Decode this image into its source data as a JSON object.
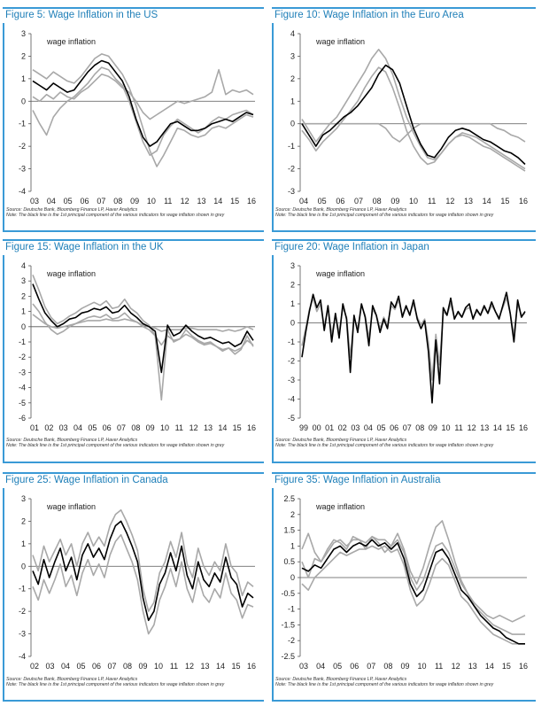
{
  "colors": {
    "accent": "#1f7fb8",
    "frame": "#3a9ad6",
    "principal": "#000000",
    "indicators": "#a8a8a8"
  },
  "chart_data": [
    {
      "type": "line",
      "title": "Figure 5: Wage Inflation in the US",
      "series_label": "wage inflation",
      "ylim": [
        -4,
        3
      ],
      "yticks": [
        "3",
        "2",
        "1",
        "0",
        "-1",
        "-2",
        "-3",
        "-4"
      ],
      "xticks": [
        "03",
        "04",
        "05",
        "06",
        "07",
        "08",
        "09",
        "10",
        "11",
        "12",
        "13",
        "14",
        "15",
        "16"
      ],
      "source": "Source: Deutsche Bank, Bloomberg Finance LP, Haver Analytics",
      "note": "Note: The black line is the 1st principal component of the various indicators for wage inflation shown in grey",
      "principal": [
        0.9,
        0.7,
        0.5,
        0.8,
        0.6,
        0.4,
        0.5,
        0.9,
        1.3,
        1.6,
        1.8,
        1.7,
        1.3,
        0.9,
        0.2,
        -0.8,
        -1.6,
        -2.0,
        -1.8,
        -1.4,
        -1.0,
        -0.9,
        -1.1,
        -1.3,
        -1.3,
        -1.2,
        -1.0,
        -0.9,
        -0.8,
        -0.9,
        -0.7,
        -0.5,
        -0.6
      ],
      "indicators": [
        [
          1.4,
          1.2,
          1.0,
          1.3,
          1.1,
          0.9,
          0.8,
          1.1,
          1.5,
          1.9,
          2.1,
          2.0,
          1.6,
          1.2,
          0.6,
          -0.2,
          -1.2,
          -2.2,
          -2.9,
          -2.4,
          -1.8,
          -1.2,
          -1.3,
          -1.5,
          -1.6,
          -1.5,
          -1.2,
          -1.1,
          -1.2,
          -1.0,
          -0.8,
          -0.6,
          -0.7
        ],
        [
          0.2,
          0.0,
          0.3,
          0.1,
          0.4,
          0.2,
          0.1,
          0.4,
          0.6,
          0.9,
          1.2,
          1.1,
          0.9,
          0.6,
          0.4,
          0.0,
          -0.5,
          -0.8,
          -0.6,
          -0.4,
          -0.2,
          0.0,
          -0.1,
          0.0,
          0.1,
          0.2,
          0.4,
          1.4,
          0.3,
          0.5,
          0.4,
          0.5,
          0.3
        ],
        [
          -0.4,
          -1.0,
          -1.5,
          -0.7,
          -0.3,
          0.0,
          0.2,
          0.5,
          0.8,
          1.2,
          1.5,
          1.4,
          1.0,
          0.7,
          0.0,
          -0.9,
          -1.8,
          -2.4,
          -2.2,
          -1.5,
          -1.1,
          -0.8,
          -1.0,
          -1.2,
          -1.4,
          -1.2,
          -0.9,
          -0.7,
          -0.8,
          -0.6,
          -0.5,
          -0.4,
          -0.6
        ]
      ]
    },
    {
      "type": "line",
      "title": "Figure 10: Wage Inflation in the Euro Area",
      "series_label": "wage inflation",
      "ylim": [
        -3,
        4
      ],
      "yticks": [
        "4",
        "3",
        "2",
        "1",
        "0",
        "-1",
        "-2",
        "-3"
      ],
      "xticks": [
        "04",
        "05",
        "06",
        "07",
        "08",
        "09",
        "10",
        "11",
        "12",
        "13",
        "14",
        "15",
        "16"
      ],
      "source": "Source: Deutsche Bank, Bloomberg Finance LP, Haver Analytics",
      "note": "Note: The black line is the 1st principal component of the various indicators for wage inflation shown in grey",
      "principal": [
        0.0,
        -0.5,
        -1.0,
        -0.5,
        -0.3,
        0.0,
        0.3,
        0.5,
        0.8,
        1.2,
        1.6,
        2.2,
        2.6,
        2.4,
        1.8,
        0.8,
        -0.2,
        -0.9,
        -1.4,
        -1.5,
        -1.1,
        -0.6,
        -0.3,
        -0.2,
        -0.3,
        -0.5,
        -0.7,
        -0.8,
        -1.0,
        -1.2,
        -1.3,
        -1.5,
        -1.8
      ],
      "indicators": [
        [
          0.2,
          -0.3,
          -0.8,
          -0.4,
          0.0,
          0.3,
          0.8,
          1.3,
          1.8,
          2.3,
          2.9,
          3.3,
          2.9,
          2.2,
          1.2,
          0.3,
          -0.4,
          -1.0,
          -1.5,
          -1.6,
          -1.3,
          -0.9,
          -0.6,
          -0.5,
          -0.6,
          -0.8,
          -1.0,
          -1.1,
          -1.3,
          -1.5,
          -1.7,
          -1.9,
          -2.1
        ],
        [
          -0.3,
          -0.7,
          -1.2,
          -0.8,
          -0.5,
          -0.2,
          0.2,
          0.6,
          1.0,
          1.6,
          2.1,
          2.5,
          2.3,
          1.6,
          0.7,
          -0.3,
          -1.0,
          -1.5,
          -1.8,
          -1.7,
          -1.3,
          -0.9,
          -0.6,
          -0.4,
          -0.5,
          -0.6,
          -0.8,
          -1.0,
          -1.2,
          -1.4,
          -1.6,
          -1.8,
          -2.0
        ],
        [
          0.0,
          0.0,
          0.0,
          0.0,
          0.0,
          0.0,
          0.0,
          0.0,
          0.0,
          0.0,
          0.0,
          0.0,
          -0.2,
          -0.6,
          -0.8,
          -0.5,
          -0.2,
          0.0,
          0.0,
          0.0,
          0.0,
          0.0,
          0.0,
          0.0,
          0.0,
          0.0,
          0.0,
          0.0,
          -0.2,
          -0.3,
          -0.5,
          -0.6,
          -0.8
        ]
      ]
    },
    {
      "type": "line",
      "title": "Figure 15: Wage Inflation in the UK",
      "series_label": "wage inflation",
      "ylim": [
        -6,
        4
      ],
      "yticks": [
        "4",
        "3",
        "2",
        "1",
        "0",
        "-1",
        "-2",
        "-3",
        "-4",
        "-5",
        "-6"
      ],
      "xticks": [
        "01",
        "02",
        "03",
        "04",
        "05",
        "06",
        "07",
        "08",
        "09",
        "10",
        "11",
        "12",
        "13",
        "14",
        "15",
        "16"
      ],
      "source": "Source: Deutsche Bank, Bloomberg Finance LP, Haver Analytics",
      "note": "Note: The black line is the 1st principal component of the various indicators for wage inflation shown in grey",
      "principal": [
        2.8,
        1.8,
        0.9,
        0.4,
        0.0,
        0.2,
        0.5,
        0.6,
        0.9,
        1.0,
        1.2,
        1.1,
        1.3,
        0.9,
        1.0,
        1.4,
        0.9,
        0.6,
        0.2,
        0.0,
        -0.3,
        -3.0,
        0.1,
        -0.6,
        -0.4,
        0.1,
        -0.3,
        -0.6,
        -0.8,
        -0.7,
        -0.9,
        -1.1,
        -1.0,
        -1.3,
        -1.1,
        -0.3,
        -0.9
      ],
      "indicators": [
        [
          3.4,
          2.4,
          1.3,
          0.6,
          0.2,
          0.4,
          0.7,
          0.9,
          1.2,
          1.4,
          1.6,
          1.4,
          1.7,
          1.2,
          1.3,
          1.8,
          1.2,
          0.9,
          0.4,
          0.1,
          -0.6,
          -4.8,
          -0.2,
          -1.0,
          -0.8,
          -0.2,
          -0.6,
          -0.9,
          -1.1,
          -1.0,
          -1.3,
          -1.6,
          -1.4,
          -1.8,
          -1.5,
          -0.6,
          -1.3
        ],
        [
          1.5,
          1.0,
          0.3,
          -0.2,
          -0.5,
          -0.3,
          0.0,
          0.2,
          0.4,
          0.6,
          0.7,
          0.6,
          0.8,
          0.5,
          0.6,
          0.9,
          0.5,
          0.3,
          0.0,
          -0.2,
          -0.6,
          -1.2,
          -0.6,
          -0.9,
          -0.8,
          -0.5,
          -0.7,
          -1.0,
          -1.2,
          -1.1,
          -1.3,
          -1.5,
          -1.4,
          -1.6,
          -1.4,
          -0.9,
          -1.2
        ],
        [
          0.8,
          0.5,
          0.2,
          0.0,
          -0.1,
          0.0,
          0.1,
          0.2,
          0.3,
          0.4,
          0.4,
          0.4,
          0.5,
          0.4,
          0.4,
          0.5,
          0.4,
          0.3,
          0.1,
          0.0,
          -0.1,
          -0.3,
          -0.2,
          -0.2,
          -0.2,
          -0.1,
          -0.1,
          -0.2,
          -0.2,
          -0.2,
          -0.2,
          -0.3,
          -0.2,
          -0.3,
          -0.2,
          0.0,
          -0.2
        ]
      ]
    },
    {
      "type": "line",
      "title": "Figure 20: Wage Inflation in Japan",
      "series_label": "wage inflation",
      "ylim": [
        -5,
        3
      ],
      "yticks": [
        "3",
        "2",
        "1",
        "0",
        "-1",
        "-2",
        "-3",
        "-4",
        "-5"
      ],
      "xticks": [
        "99",
        "00",
        "01",
        "02",
        "03",
        "04",
        "05",
        "06",
        "07",
        "08",
        "09",
        "10",
        "11",
        "12",
        "13",
        "14",
        "15",
        "16"
      ],
      "source": "Source: Deutsche Bank, Bloomberg Finance LP, Haver Analytics",
      "note": "Note: The black line is the 1st principal component of the various indicators for wage inflation shown in grey",
      "principal": [
        -1.8,
        -0.5,
        0.6,
        1.5,
        0.8,
        1.2,
        -0.4,
        0.9,
        -1.0,
        0.5,
        -0.8,
        1.0,
        0.2,
        -2.6,
        0.4,
        -0.5,
        1.0,
        0.3,
        -1.2,
        0.9,
        0.4,
        -0.5,
        0.2,
        -0.3,
        1.1,
        0.8,
        1.4,
        0.3,
        0.9,
        0.4,
        1.2,
        0.2,
        -0.3,
        0.1,
        -1.5,
        -4.2,
        -0.9,
        -3.2,
        0.8,
        0.4,
        1.3,
        0.2,
        0.6,
        0.3,
        0.8,
        1.0,
        0.2,
        0.7,
        0.4,
        0.9,
        0.5,
        1.1,
        0.6,
        0.2,
        0.9,
        1.6,
        0.5,
        -1.0,
        1.2,
        0.3,
        0.6
      ],
      "indicators": [
        [
          -1.2,
          -0.3,
          0.7,
          1.3,
          0.6,
          1.0,
          -0.2,
          0.8,
          -0.6,
          0.4,
          -0.5,
          0.8,
          0.3,
          -1.8,
          0.3,
          -0.3,
          0.9,
          0.4,
          -0.8,
          0.7,
          0.4,
          -0.3,
          0.3,
          -0.1,
          0.9,
          0.7,
          1.2,
          0.4,
          0.8,
          0.5,
          1.0,
          0.3,
          -0.1,
          0.2,
          -1.0,
          -3.0,
          -0.6,
          -2.2,
          0.6,
          0.4,
          1.0,
          0.3,
          0.5,
          0.3,
          0.7,
          0.8,
          0.3,
          0.6,
          0.4,
          0.8,
          0.5,
          0.9,
          0.6,
          0.3,
          0.8,
          1.3,
          0.5,
          -0.6,
          1.0,
          0.4,
          0.5
        ]
      ]
    },
    {
      "type": "line",
      "title": "Figure 25: Wage Inflation in Canada",
      "series_label": "wage inflation",
      "ylim": [
        -4,
        3
      ],
      "yticks": [
        "3",
        "2",
        "1",
        "0",
        "-1",
        "-2",
        "-3",
        "-4"
      ],
      "xticks": [
        "02",
        "03",
        "04",
        "05",
        "06",
        "07",
        "08",
        "09",
        "10",
        "11",
        "12",
        "13",
        "14",
        "15",
        "16"
      ],
      "source": "Source: Deutsche Bank, Bloomberg Finance LP, Haver Analytics",
      "note": "Note: The black line is the 1st principal component of the various indicators for wage inflation shown in grey",
      "principal": [
        -0.2,
        -0.8,
        0.3,
        -0.5,
        0.2,
        0.8,
        -0.2,
        0.4,
        -0.6,
        0.5,
        1.0,
        0.4,
        0.8,
        0.3,
        1.2,
        1.8,
        2.0,
        1.5,
        0.9,
        0.2,
        -1.4,
        -2.4,
        -2.0,
        -0.8,
        -0.3,
        0.6,
        -0.2,
        0.9,
        -0.4,
        -1.0,
        0.2,
        -0.6,
        -0.9,
        -0.3,
        -0.7,
        0.4,
        -0.5,
        -0.8,
        -1.8,
        -1.2,
        -1.4
      ],
      "indicators": [
        [
          0.5,
          -0.2,
          0.9,
          0.2,
          0.7,
          1.2,
          0.5,
          1.0,
          0.0,
          1.0,
          1.5,
          0.9,
          1.3,
          0.9,
          1.8,
          2.3,
          2.5,
          2.0,
          1.4,
          0.7,
          -1.0,
          -2.0,
          -1.6,
          -0.3,
          0.2,
          1.1,
          0.4,
          1.5,
          0.1,
          -0.5,
          0.8,
          0.0,
          -0.4,
          0.2,
          -0.2,
          1.0,
          0.0,
          -0.3,
          -1.3,
          -0.7,
          -0.9
        ],
        [
          -0.9,
          -1.5,
          -0.6,
          -1.2,
          -0.6,
          0.1,
          -0.9,
          -0.4,
          -1.3,
          -0.3,
          0.3,
          -0.4,
          0.1,
          -0.5,
          0.5,
          1.1,
          1.4,
          0.8,
          0.2,
          -0.6,
          -2.0,
          -3.0,
          -2.6,
          -1.5,
          -0.9,
          -0.1,
          -0.9,
          0.2,
          -1.0,
          -1.6,
          -0.5,
          -1.3,
          -1.6,
          -1.0,
          -1.4,
          -0.3,
          -1.2,
          -1.5,
          -2.3,
          -1.7,
          -1.8
        ]
      ]
    },
    {
      "type": "line",
      "title": "Figure 35: Wage Inflation in Australia",
      "series_label": "wage inflation",
      "ylim": [
        -2.5,
        2.5
      ],
      "yticks": [
        "2.5",
        "2",
        "1.5",
        "1",
        "0.5",
        "0",
        "-0.5",
        "-1",
        "-1.5",
        "-2",
        "-2.5"
      ],
      "xticks": [
        "03",
        "04",
        "05",
        "06",
        "07",
        "08",
        "09",
        "10",
        "11",
        "12",
        "13",
        "14",
        "15",
        "16"
      ],
      "source": "Source: Deutsche Bank, Bloomberg Finance LP, Haver Analytics",
      "note": "Note: The black line is the 1st principal component of the various indicators for wage inflation shown in grey",
      "principal": [
        0.3,
        0.2,
        0.4,
        0.3,
        0.6,
        0.9,
        1.0,
        0.8,
        1.0,
        1.1,
        1.0,
        1.2,
        1.0,
        1.1,
        0.9,
        1.1,
        0.6,
        -0.2,
        -0.6,
        -0.4,
        0.2,
        0.8,
        0.9,
        0.6,
        0.1,
        -0.4,
        -0.6,
        -0.9,
        -1.2,
        -1.4,
        -1.6,
        -1.7,
        -1.9,
        -2.0,
        -2.1,
        -2.1
      ],
      "indicators": [
        [
          0.9,
          1.4,
          0.8,
          0.5,
          0.9,
          1.2,
          1.1,
          0.9,
          1.3,
          1.2,
          0.9,
          1.3,
          1.1,
          0.8,
          1.0,
          1.4,
          0.9,
          0.2,
          -0.2,
          0.3,
          1.0,
          1.6,
          1.8,
          1.2,
          0.5,
          -0.1,
          -0.5,
          -0.8,
          -1.0,
          -1.2,
          -1.3,
          -1.2,
          -1.3,
          -1.4,
          -1.3,
          -1.2
        ],
        [
          -0.2,
          -0.4,
          0.0,
          0.2,
          0.4,
          0.6,
          0.8,
          0.7,
          0.8,
          0.9,
          0.9,
          1.0,
          0.9,
          1.0,
          0.8,
          0.9,
          0.4,
          -0.4,
          -0.9,
          -0.7,
          -0.2,
          0.4,
          0.6,
          0.4,
          -0.1,
          -0.6,
          -0.8,
          -1.1,
          -1.4,
          -1.6,
          -1.8,
          -1.9,
          -2.0,
          -2.1,
          -2.1,
          -2.1
        ],
        [
          0.5,
          0.0,
          0.6,
          0.5,
          0.8,
          1.1,
          1.2,
          1.0,
          1.2,
          1.2,
          1.1,
          1.3,
          1.2,
          1.2,
          1.0,
          1.2,
          0.8,
          0.0,
          -0.4,
          -0.1,
          0.5,
          1.0,
          1.1,
          0.8,
          0.3,
          -0.2,
          -0.5,
          -0.9,
          -1.1,
          -1.3,
          -1.5,
          -1.6,
          -1.7,
          -1.8,
          -1.8,
          -1.8
        ]
      ]
    }
  ]
}
